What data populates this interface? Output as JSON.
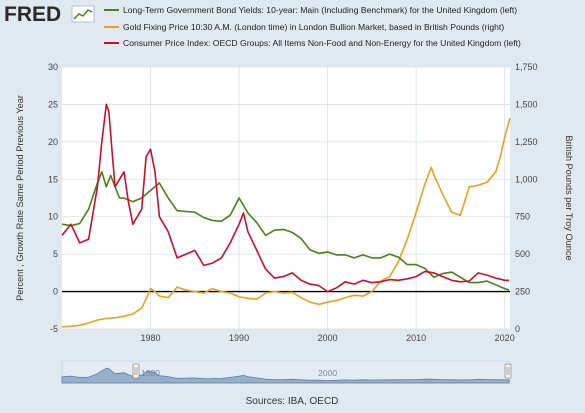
{
  "logo": {
    "text": "FRED",
    "icon": "fred-trend-line-icon"
  },
  "colors": {
    "background": "#e1e9f0",
    "plot_background": "#ffffff",
    "bond": "#4b7f1a",
    "gold": "#e8a11f",
    "cpi": "#c8102e",
    "zero_line": "#000000",
    "grid": "#d9dfe4",
    "navigator_fill": "#9fb6d0",
    "navigator_line": "#5a7aa3"
  },
  "sources": "Sources: IBA, OECD",
  "chart_data": {
    "type": "line",
    "y_left": {
      "title": "Percent , Growth Rate Same Period Previous Year",
      "range": [
        -5,
        30
      ],
      "ticks": [
        -5,
        0,
        5,
        10,
        15,
        20,
        25,
        30
      ],
      "tick_labels": [
        "-5",
        "0",
        "5",
        "10",
        "15",
        "20",
        "25",
        "30"
      ]
    },
    "y_right": {
      "title": "British Pounds per Troy Ounce",
      "range": [
        0,
        1750
      ],
      "ticks": [
        0,
        250,
        500,
        750,
        1000,
        1250,
        1500,
        1750
      ],
      "tick_labels": [
        "0",
        "250",
        "500",
        "750",
        "1,000",
        "1,250",
        "1,500",
        "1,750"
      ]
    },
    "x_axis": {
      "range": [
        1970,
        2020.6
      ],
      "ticks": [
        1980,
        1990,
        2000,
        2010,
        2020
      ],
      "tick_labels": [
        "1980",
        "1990",
        "2000",
        "2010",
        "2020"
      ]
    },
    "grid": true,
    "legend_position": "top",
    "navigator": {
      "labels": [
        "1980",
        "2000"
      ],
      "label_years": [
        1980,
        2000
      ]
    },
    "series": [
      {
        "name": "Long-Term Government Bond Yields: 10-year: Main (Including Benchmark) for the United Kingdom (left)",
        "axis": "left",
        "x": [
          1970,
          1971,
          1972,
          1973,
          1974,
          1974.5,
          1975,
          1975.5,
          1976,
          1976.5,
          1977,
          1978,
          1979,
          1980,
          1981,
          1982,
          1983,
          1984,
          1985,
          1986,
          1987,
          1988,
          1989,
          1990,
          1990.5,
          1991,
          1992,
          1993,
          1994,
          1995,
          1996,
          1997,
          1998,
          1999,
          2000,
          2001,
          2002,
          2003,
          2004,
          2005,
          2006,
          2007,
          2008,
          2009,
          2010,
          2011,
          2012,
          2013,
          2014,
          2015,
          2016,
          2017,
          2018,
          2019,
          2020,
          2020.5
        ],
        "y": [
          9.0,
          8.8,
          9.1,
          11.0,
          14.5,
          16.0,
          14.0,
          15.5,
          14.0,
          12.5,
          12.5,
          12.0,
          12.5,
          13.5,
          14.5,
          12.5,
          10.8,
          10.7,
          10.6,
          9.9,
          9.5,
          9.4,
          10.2,
          12.5,
          11.5,
          10.5,
          9.2,
          7.5,
          8.2,
          8.3,
          7.9,
          7.1,
          5.6,
          5.1,
          5.3,
          4.9,
          4.9,
          4.5,
          4.9,
          4.5,
          4.5,
          5.0,
          4.6,
          3.6,
          3.6,
          3.1,
          1.9,
          2.4,
          2.6,
          1.9,
          1.2,
          1.2,
          1.4,
          0.9,
          0.4,
          0.2
        ]
      },
      {
        "name": "Gold Fixing Price 10:30 A.M. (London time) in London Bullion Market, based in British Pounds (right)",
        "axis": "right",
        "x": [
          1970,
          1971,
          1972,
          1973,
          1974,
          1975,
          1976,
          1977,
          1978,
          1979,
          1979.5,
          1980,
          1980.5,
          1981,
          1982,
          1983,
          1984,
          1985,
          1986,
          1987,
          1988,
          1989,
          1990,
          1991,
          1992,
          1993,
          1994,
          1995,
          1996,
          1997,
          1998,
          1999,
          2000,
          2001,
          2002,
          2003,
          2004,
          2005,
          2006,
          2007,
          2008,
          2009,
          2010,
          2011,
          2011.7,
          2012,
          2013,
          2014,
          2015,
          2016,
          2017,
          2018,
          2019,
          2019.5,
          2020,
          2020.6
        ],
        "y": [
          15,
          18,
          25,
          40,
          60,
          70,
          75,
          85,
          100,
          140,
          200,
          270,
          250,
          220,
          210,
          280,
          260,
          250,
          240,
          270,
          250,
          240,
          215,
          205,
          200,
          240,
          250,
          240,
          245,
          210,
          180,
          165,
          180,
          190,
          210,
          225,
          220,
          250,
          320,
          350,
          450,
          600,
          780,
          970,
          1080,
          1030,
          900,
          780,
          760,
          950,
          960,
          980,
          1050,
          1150,
          1280,
          1410
        ]
      },
      {
        "name": "Consumer Price Index: OECD Groups: All Items Non-Food and Non-Energy for the United Kingdom (left)",
        "axis": "left",
        "x": [
          1970,
          1971,
          1972,
          1973,
          1974,
          1974.5,
          1975,
          1975.3,
          1975.7,
          1976,
          1976.5,
          1977,
          1977.5,
          1978,
          1979,
          1979.5,
          1980,
          1980.5,
          1981,
          1982,
          1983,
          1984,
          1985,
          1986,
          1987,
          1988,
          1989,
          1990,
          1990.5,
          1991,
          1992,
          1993,
          1994,
          1995,
          1996,
          1997,
          1998,
          1999,
          2000,
          2001,
          2002,
          2003,
          2004,
          2005,
          2006,
          2007,
          2008,
          2009,
          2010,
          2011,
          2012,
          2013,
          2014,
          2015,
          2016,
          2017,
          2018,
          2019,
          2020,
          2020.5
        ],
        "y": [
          7.5,
          9.0,
          6.5,
          7.0,
          14.0,
          20.0,
          25.0,
          24.0,
          18.0,
          14.0,
          15.0,
          16.0,
          12.0,
          9.0,
          11.0,
          18.0,
          19.0,
          16.0,
          10.0,
          8.0,
          4.5,
          5.0,
          5.5,
          3.5,
          3.8,
          4.5,
          6.5,
          9.0,
          10.5,
          8.0,
          5.5,
          3.0,
          1.8,
          2.0,
          2.5,
          1.5,
          1.0,
          0.8,
          0.0,
          0.5,
          1.3,
          1.0,
          1.5,
          1.2,
          1.3,
          1.6,
          1.5,
          1.7,
          2.0,
          2.7,
          2.5,
          2.0,
          1.5,
          1.3,
          1.4,
          2.5,
          2.2,
          1.8,
          1.5,
          1.5
        ]
      }
    ]
  }
}
